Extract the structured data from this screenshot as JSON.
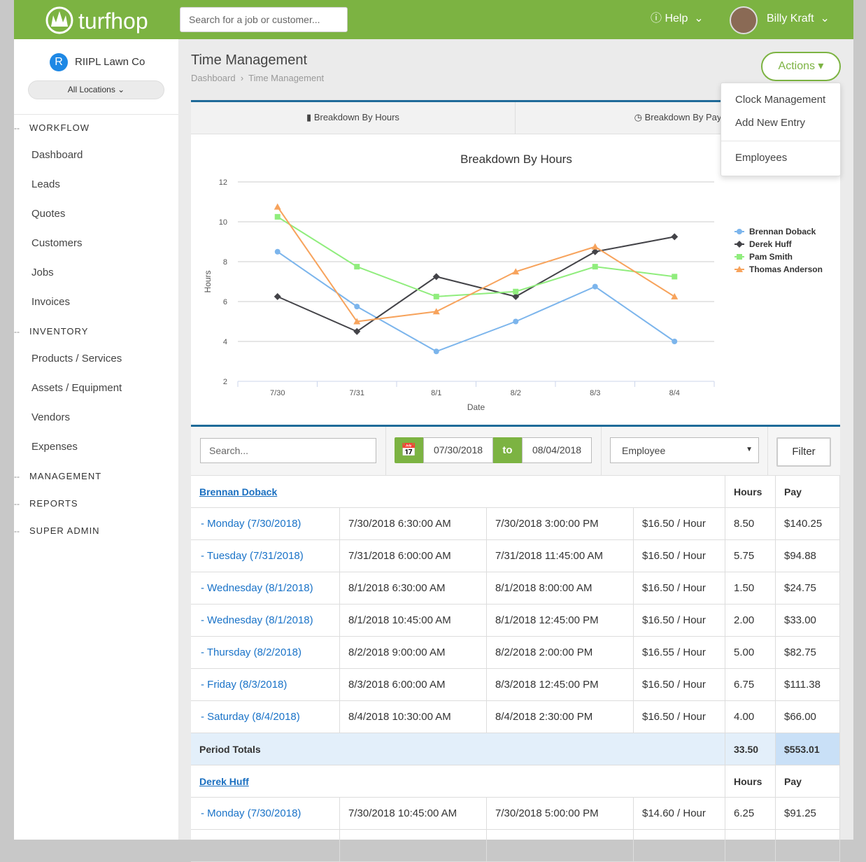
{
  "header": {
    "logo": "turfhop",
    "search_placeholder": "Search for a job or customer...",
    "help": "Help",
    "user": "Billy Kraft"
  },
  "sidebar": {
    "company_initial": "R",
    "company": "RIIPL Lawn Co",
    "location": "All Locations",
    "sections": [
      {
        "title": "WORKFLOW",
        "items": [
          "Dashboard",
          "Leads",
          "Quotes",
          "Customers",
          "Jobs",
          "Invoices"
        ]
      },
      {
        "title": "INVENTORY",
        "items": [
          "Products / Services",
          "Assets / Equipment",
          "Vendors",
          "Expenses"
        ]
      },
      {
        "title": "MANAGEMENT",
        "items": []
      },
      {
        "title": "REPORTS",
        "items": []
      },
      {
        "title": "SUPER ADMIN",
        "items": []
      }
    ]
  },
  "page": {
    "title": "Time Management",
    "breadcrumb": [
      "Dashboard",
      "Time Management"
    ],
    "actions": "Actions",
    "actions_menu": [
      "Clock Management",
      "Add New Entry",
      "Employees"
    ],
    "tabs": [
      "Breakdown By Hours",
      "Breakdown By Pay"
    ]
  },
  "chart_data": {
    "type": "line",
    "title": "Breakdown By Hours",
    "y_label": "Hours",
    "x_label": "Date",
    "categories": [
      "7/30",
      "7/31",
      "8/1",
      "8/2",
      "8/3",
      "8/4"
    ],
    "ylim": [
      2,
      12
    ],
    "yticks": [
      2,
      4,
      6,
      8,
      10,
      12
    ],
    "grid": true,
    "legend": "right",
    "series": [
      {
        "name": "Brennan Doback",
        "color": "#7cb5ec",
        "marker": "circle",
        "values": [
          8.5,
          5.75,
          3.5,
          5.0,
          6.75,
          4.0
        ]
      },
      {
        "name": "Derek Huff",
        "color": "#434348",
        "marker": "diamond",
        "values": [
          6.25,
          4.5,
          7.25,
          6.25,
          8.5,
          9.25
        ]
      },
      {
        "name": "Pam Smith",
        "color": "#90ed7d",
        "marker": "square",
        "values": [
          10.25,
          7.75,
          6.25,
          6.5,
          7.75,
          7.25
        ]
      },
      {
        "name": "Thomas Anderson",
        "color": "#f7a35c",
        "marker": "triangle",
        "values": [
          10.75,
          5.0,
          5.5,
          7.5,
          8.75,
          6.25
        ]
      }
    ]
  },
  "filters": {
    "search_placeholder": "Search...",
    "date_from": "07/30/2018",
    "date_sep": "to",
    "date_to": "08/04/2018",
    "employee": "Employee",
    "button": "Filter"
  },
  "table": {
    "columns": [
      "Hours",
      "Pay"
    ],
    "groups": [
      {
        "name": "Brennan Doback",
        "rows": [
          [
            "- Monday (7/30/2018)",
            "7/30/2018 6:30:00 AM",
            "7/30/2018 3:00:00 PM",
            "$16.50 / Hour",
            "8.50",
            "$140.25"
          ],
          [
            "- Tuesday (7/31/2018)",
            "7/31/2018 6:00:00 AM",
            "7/31/2018 11:45:00 AM",
            "$16.50 / Hour",
            "5.75",
            "$94.88"
          ],
          [
            "- Wednesday (8/1/2018)",
            "8/1/2018 6:30:00 AM",
            "8/1/2018 8:00:00 AM",
            "$16.50 / Hour",
            "1.50",
            "$24.75"
          ],
          [
            "- Wednesday (8/1/2018)",
            "8/1/2018 10:45:00 AM",
            "8/1/2018 12:45:00 PM",
            "$16.50 / Hour",
            "2.00",
            "$33.00"
          ],
          [
            "- Thursday (8/2/2018)",
            "8/2/2018 9:00:00 AM",
            "8/2/2018 2:00:00 PM",
            "$16.55 / Hour",
            "5.00",
            "$82.75"
          ],
          [
            "- Friday (8/3/2018)",
            "8/3/2018 6:00:00 AM",
            "8/3/2018 12:45:00 PM",
            "$16.50 / Hour",
            "6.75",
            "$111.38"
          ],
          [
            "- Saturday (8/4/2018)",
            "8/4/2018 10:30:00 AM",
            "8/4/2018 2:30:00 PM",
            "$16.50 / Hour",
            "4.00",
            "$66.00"
          ]
        ],
        "totals": {
          "label": "Period Totals",
          "hours": "33.50",
          "pay": "$553.01"
        }
      },
      {
        "name": "Derek Huff",
        "rows": [
          [
            "- Monday (7/30/2018)",
            "7/30/2018 10:45:00 AM",
            "7/30/2018 5:00:00 PM",
            "$14.60 / Hour",
            "6.25",
            "$91.25"
          ]
        ]
      }
    ]
  }
}
